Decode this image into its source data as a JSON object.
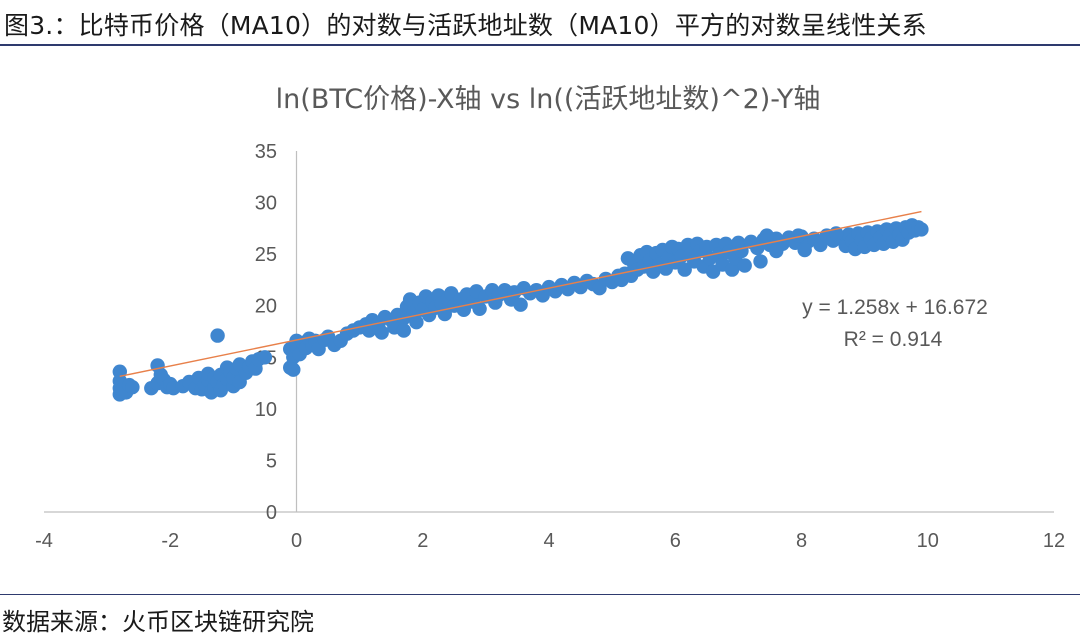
{
  "figure": {
    "caption": "图3.：比特币价格（MA10）的对数与活跃地址数（MA10）平方的对数呈线性关系",
    "source": "数据来源：火币区块链研究院"
  },
  "chart_data": {
    "type": "scatter",
    "title": "ln(BTC价格)-X轴 vs ln((活跃地址数)^2)-Y轴",
    "xlim": [
      -4,
      12
    ],
    "ylim": [
      0,
      35
    ],
    "x_ticks": [
      -4,
      -2,
      0,
      2,
      4,
      6,
      8,
      10,
      12
    ],
    "y_ticks": [
      0,
      5,
      10,
      15,
      20,
      25,
      30,
      35
    ],
    "x_tick_labels": [
      "-4",
      "-2",
      "0",
      "2",
      "4",
      "6",
      "8",
      "10",
      "12"
    ],
    "y_tick_labels": [
      "0",
      "5",
      "10",
      "15",
      "20",
      "25",
      "30",
      "35"
    ],
    "grid": false,
    "legend": "none",
    "marker_color": "#3f86cf",
    "trendline": {
      "type": "linear",
      "slope": 1.258,
      "intercept": 16.672,
      "x_range": [
        -2.8,
        9.9
      ],
      "color": "#e8804a"
    },
    "equation_text": "y = 1.258x + 16.672",
    "r2_text": "R² = 0.914",
    "series": [
      {
        "points": [
          [
            -2.8,
            11.4
          ],
          [
            -2.8,
            12.0
          ],
          [
            -2.8,
            12.7
          ],
          [
            -2.8,
            13.6
          ],
          [
            -2.75,
            11.9
          ],
          [
            -2.7,
            11.6
          ],
          [
            -2.65,
            12.3
          ],
          [
            -2.6,
            12.1
          ],
          [
            -2.3,
            12.0
          ],
          [
            -2.2,
            12.5
          ],
          [
            -2.2,
            14.2
          ],
          [
            -2.15,
            13.3
          ],
          [
            -2.1,
            12.8
          ],
          [
            -2.05,
            12.1
          ],
          [
            -2.0,
            12.4
          ],
          [
            -1.95,
            12.0
          ],
          [
            -1.8,
            12.2
          ],
          [
            -1.7,
            12.6
          ],
          [
            -1.6,
            12.0
          ],
          [
            -1.55,
            13.0
          ],
          [
            -1.5,
            11.9
          ],
          [
            -1.45,
            12.3
          ],
          [
            -1.4,
            12.8
          ],
          [
            -1.4,
            13.4
          ],
          [
            -1.35,
            11.6
          ],
          [
            -1.3,
            12.1
          ],
          [
            -1.3,
            13.0
          ],
          [
            -1.25,
            12.6
          ],
          [
            -1.2,
            11.8
          ],
          [
            -1.2,
            13.3
          ],
          [
            -1.15,
            12.4
          ],
          [
            -1.1,
            14.0
          ],
          [
            -1.1,
            12.9
          ],
          [
            -1.05,
            13.6
          ],
          [
            -1.0,
            12.2
          ],
          [
            -1.0,
            13.0
          ],
          [
            -0.95,
            13.9
          ],
          [
            -0.9,
            12.6
          ],
          [
            -0.9,
            14.3
          ],
          [
            -0.8,
            13.5
          ],
          [
            -0.75,
            14.1
          ],
          [
            -0.7,
            14.6
          ],
          [
            -0.65,
            13.9
          ],
          [
            -0.6,
            14.8
          ],
          [
            -0.5,
            15.0
          ],
          [
            -1.25,
            17.1
          ],
          [
            -0.1,
            14.0
          ],
          [
            -0.05,
            15.0
          ],
          [
            -0.1,
            15.8
          ],
          [
            0.0,
            16.6
          ],
          [
            0.0,
            16.0
          ],
          [
            0.05,
            15.3
          ],
          [
            0.1,
            16.4
          ],
          [
            0.15,
            15.9
          ],
          [
            0.2,
            16.8
          ],
          [
            0.25,
            16.2
          ],
          [
            0.3,
            16.6
          ],
          [
            0.35,
            15.8
          ],
          [
            0.45,
            16.7
          ],
          [
            0.5,
            17.0
          ],
          [
            -0.05,
            13.8
          ],
          [
            0.6,
            16.2
          ],
          [
            0.7,
            16.6
          ],
          [
            0.8,
            17.3
          ],
          [
            0.9,
            17.6
          ],
          [
            1.0,
            17.9
          ],
          [
            1.1,
            18.2
          ],
          [
            1.15,
            17.6
          ],
          [
            1.2,
            18.6
          ],
          [
            1.3,
            18.3
          ],
          [
            1.35,
            17.4
          ],
          [
            1.4,
            18.9
          ],
          [
            1.5,
            18.6
          ],
          [
            1.55,
            17.9
          ],
          [
            1.6,
            19.1
          ],
          [
            1.7,
            18.8
          ],
          [
            1.7,
            17.6
          ],
          [
            1.75,
            19.9
          ],
          [
            1.8,
            20.6
          ],
          [
            1.85,
            19.3
          ],
          [
            1.9,
            18.4
          ],
          [
            1.95,
            20.3
          ],
          [
            2.0,
            19.6
          ],
          [
            2.05,
            20.9
          ],
          [
            2.1,
            19.1
          ],
          [
            2.15,
            20.4
          ],
          [
            2.2,
            19.8
          ],
          [
            2.25,
            21.0
          ],
          [
            2.3,
            20.2
          ],
          [
            2.35,
            19.2
          ],
          [
            2.4,
            20.7
          ],
          [
            2.45,
            21.2
          ],
          [
            2.5,
            20.0
          ],
          [
            2.6,
            20.6
          ],
          [
            2.65,
            19.6
          ],
          [
            2.7,
            21.1
          ],
          [
            2.8,
            20.4
          ],
          [
            2.85,
            21.4
          ],
          [
            2.9,
            19.7
          ],
          [
            3.0,
            20.9
          ],
          [
            3.1,
            21.5
          ],
          [
            3.15,
            20.3
          ],
          [
            3.2,
            21.0
          ],
          [
            3.3,
            21.5
          ],
          [
            3.4,
            20.6
          ],
          [
            3.45,
            21.3
          ],
          [
            3.55,
            20.1
          ],
          [
            3.6,
            21.7
          ],
          [
            3.7,
            21.2
          ],
          [
            3.8,
            21.5
          ],
          [
            3.9,
            21.0
          ],
          [
            4.0,
            21.8
          ],
          [
            4.1,
            21.4
          ],
          [
            4.2,
            22.0
          ],
          [
            4.3,
            21.6
          ],
          [
            4.4,
            22.2
          ],
          [
            4.5,
            21.8
          ],
          [
            4.6,
            22.4
          ],
          [
            4.7,
            22.1
          ],
          [
            4.8,
            21.7
          ],
          [
            4.9,
            22.6
          ],
          [
            5.0,
            22.3
          ],
          [
            5.1,
            22.9
          ],
          [
            5.15,
            22.5
          ],
          [
            5.2,
            23.1
          ],
          [
            5.25,
            24.6
          ],
          [
            5.3,
            22.9
          ],
          [
            5.35,
            24.0
          ],
          [
            5.4,
            23.5
          ],
          [
            5.45,
            24.9
          ],
          [
            5.5,
            23.8
          ],
          [
            5.55,
            25.2
          ],
          [
            5.6,
            24.4
          ],
          [
            5.65,
            23.3
          ],
          [
            5.7,
            25.1
          ],
          [
            5.75,
            24.0
          ],
          [
            5.8,
            25.4
          ],
          [
            5.85,
            23.6
          ],
          [
            5.9,
            24.7
          ],
          [
            5.95,
            25.7
          ],
          [
            6.0,
            24.2
          ],
          [
            6.05,
            25.5
          ],
          [
            6.1,
            24.8
          ],
          [
            6.15,
            23.5
          ],
          [
            6.2,
            25.9
          ],
          [
            6.25,
            25.0
          ],
          [
            6.3,
            24.3
          ],
          [
            6.35,
            26.0
          ],
          [
            6.4,
            25.3
          ],
          [
            6.45,
            23.8
          ],
          [
            6.5,
            25.7
          ],
          [
            6.55,
            24.6
          ],
          [
            6.6,
            23.3
          ],
          [
            6.65,
            25.9
          ],
          [
            6.7,
            25.0
          ],
          [
            6.75,
            24.0
          ],
          [
            6.8,
            26.0
          ],
          [
            6.85,
            25.2
          ],
          [
            6.9,
            23.5
          ],
          [
            6.95,
            24.6
          ],
          [
            7.0,
            26.1
          ],
          [
            7.05,
            25.3
          ],
          [
            7.1,
            23.9
          ],
          [
            7.2,
            26.2
          ],
          [
            7.3,
            25.6
          ],
          [
            7.35,
            24.3
          ],
          [
            7.4,
            26.4
          ],
          [
            7.5,
            25.9
          ],
          [
            7.6,
            26.5
          ],
          [
            7.7,
            26.0
          ],
          [
            7.8,
            26.6
          ],
          [
            7.9,
            26.1
          ],
          [
            8.0,
            26.7
          ],
          [
            8.1,
            26.2
          ],
          [
            8.2,
            26.5
          ],
          [
            8.3,
            25.9
          ],
          [
            8.4,
            26.8
          ],
          [
            8.5,
            26.3
          ],
          [
            8.6,
            26.6
          ],
          [
            8.7,
            25.8
          ],
          [
            8.75,
            26.9
          ],
          [
            8.8,
            26.3
          ],
          [
            8.85,
            25.5
          ],
          [
            8.9,
            27.0
          ],
          [
            8.95,
            26.4
          ],
          [
            9.0,
            25.7
          ],
          [
            9.05,
            27.1
          ],
          [
            9.1,
            26.5
          ],
          [
            9.15,
            25.9
          ],
          [
            9.2,
            27.2
          ],
          [
            9.25,
            26.6
          ],
          [
            9.3,
            26.0
          ],
          [
            9.35,
            27.4
          ],
          [
            9.4,
            26.8
          ],
          [
            9.45,
            26.2
          ],
          [
            9.5,
            27.5
          ],
          [
            9.55,
            26.9
          ],
          [
            9.6,
            26.4
          ],
          [
            9.65,
            27.6
          ],
          [
            9.7,
            27.1
          ],
          [
            9.75,
            27.8
          ],
          [
            9.8,
            27.3
          ],
          [
            9.85,
            27.6
          ],
          [
            9.9,
            27.4
          ],
          [
            8.05,
            25.4
          ],
          [
            7.6,
            25.3
          ],
          [
            7.45,
            26.8
          ],
          [
            8.55,
            27.0
          ],
          [
            7.95,
            26.8
          ]
        ]
      }
    ]
  }
}
